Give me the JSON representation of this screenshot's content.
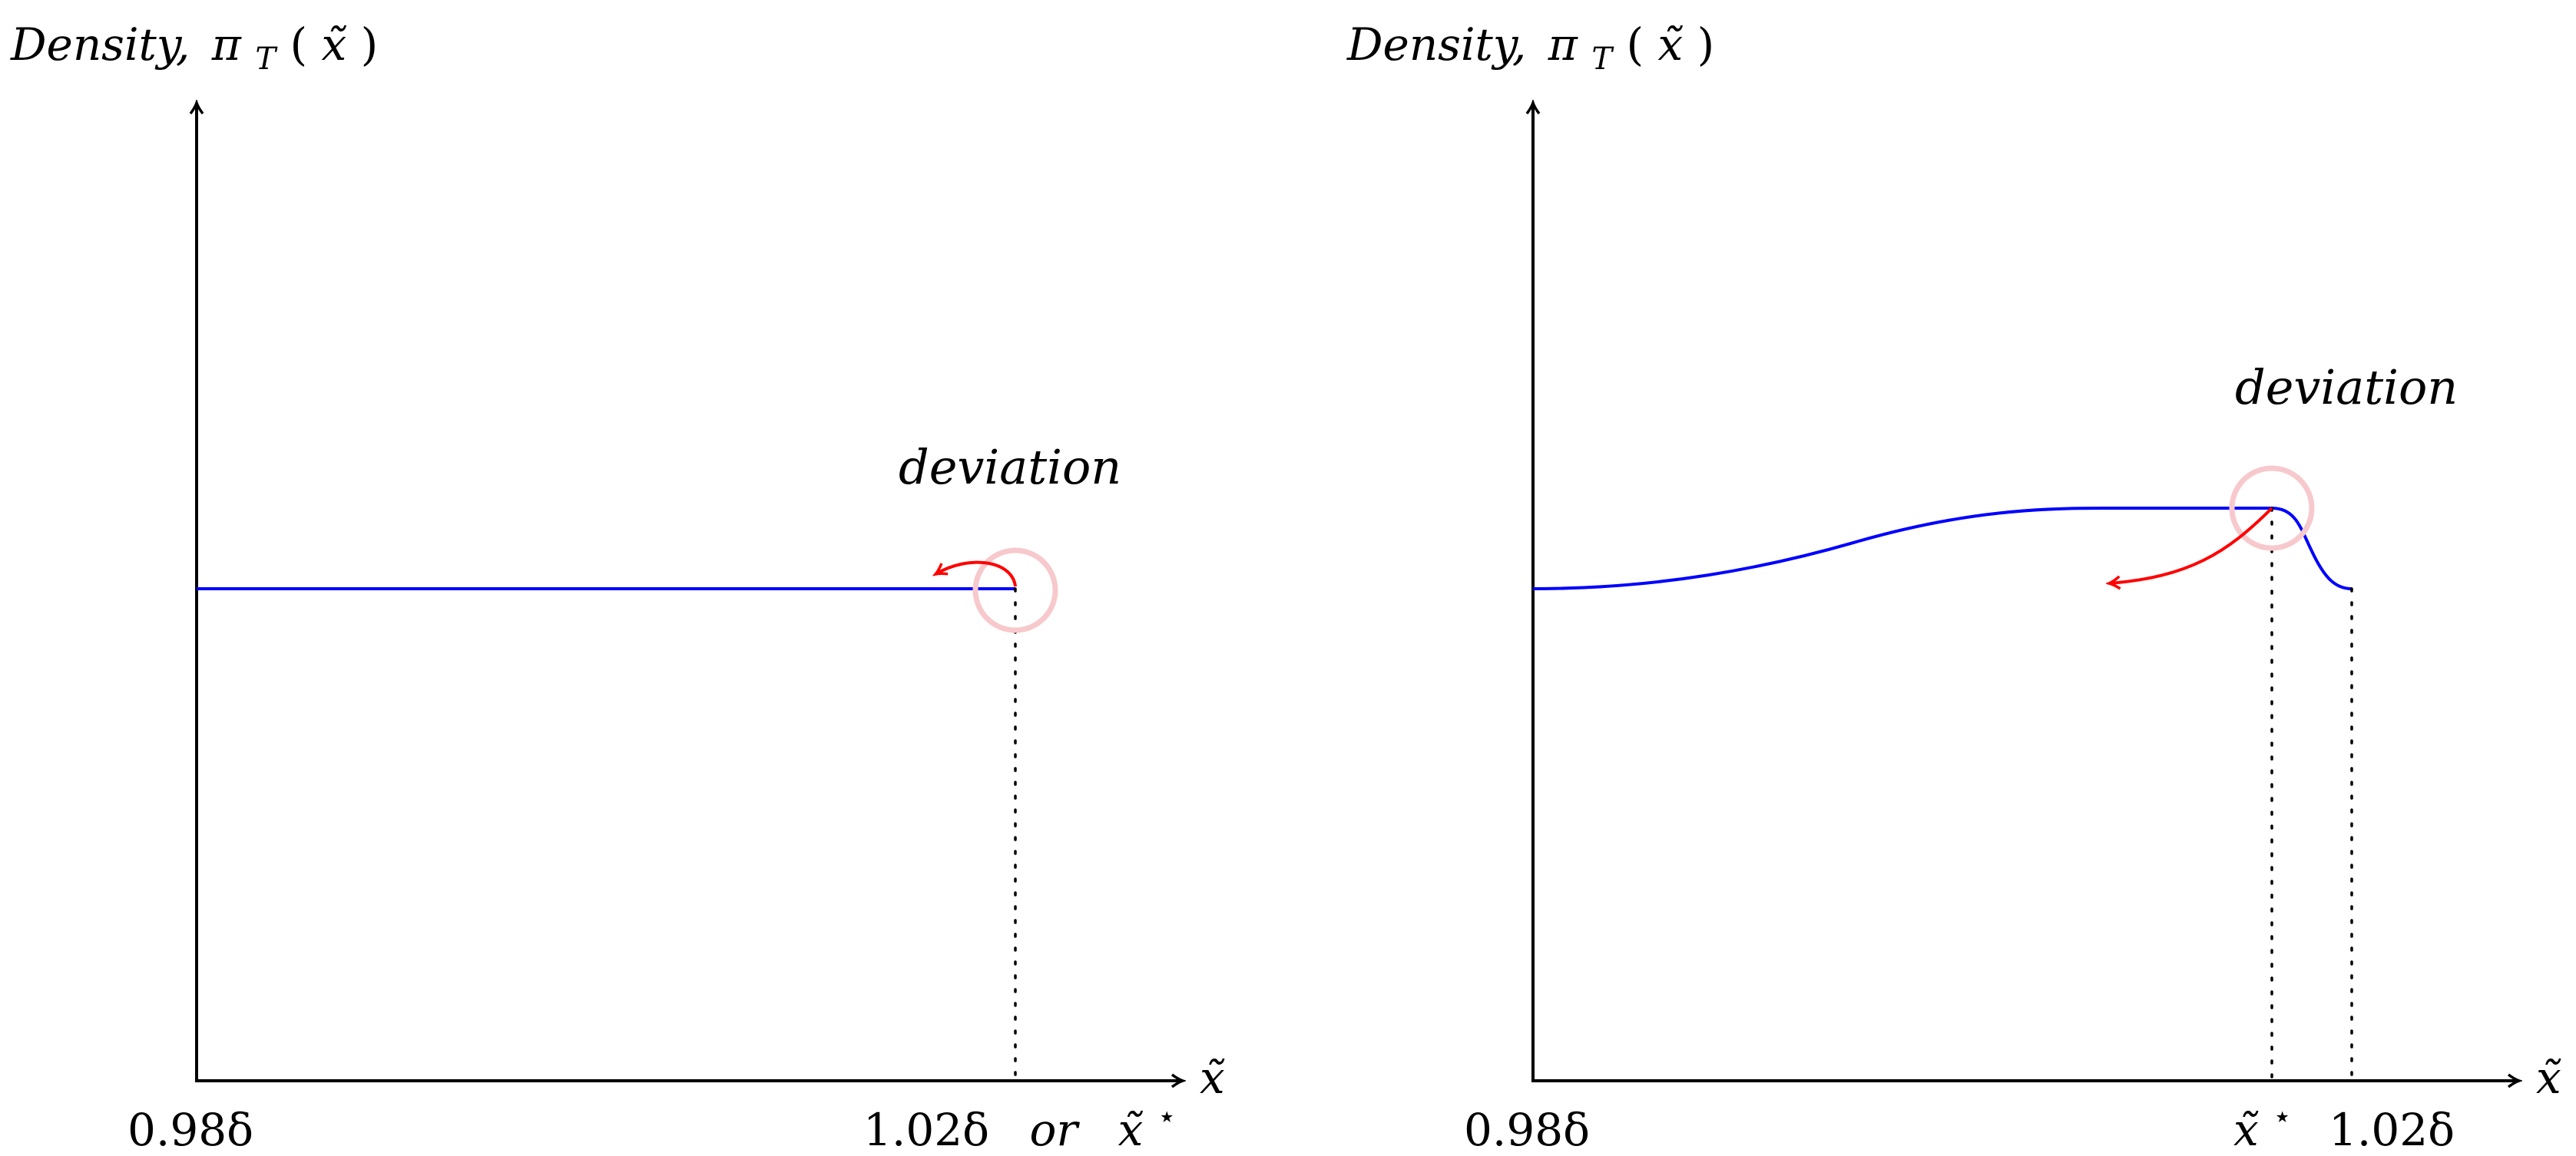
{
  "panels": [
    {
      "id": "left",
      "y_axis_label": {
        "word": "Density,",
        "symbol": "π",
        "sub": "T",
        "open": "(",
        "var": "x̃",
        "close": ")"
      },
      "x_axis_label": "x̃",
      "x_tick_left": "0.98δ",
      "x_tick_right": {
        "value": "1.02δ",
        "joiner": "or",
        "star_var": "x̃",
        "star": "⋆"
      },
      "annotation": "deviation"
    },
    {
      "id": "right",
      "y_axis_label": {
        "word": "Density,",
        "symbol": "π",
        "sub": "T",
        "open": "(",
        "var": "x̃",
        "close": ")"
      },
      "x_axis_label": "x̃",
      "x_tick_left": "0.98δ",
      "x_tick_star": {
        "var": "x̃",
        "star": "⋆"
      },
      "x_tick_right": "1.02δ",
      "annotation": "deviation"
    }
  ],
  "colors": {
    "axis": "#000000",
    "density_curve": "#0000ff",
    "deviation_arrow": "#ff0000",
    "highlight_circle": "#f7c9cc",
    "guide_line": "#000000"
  }
}
